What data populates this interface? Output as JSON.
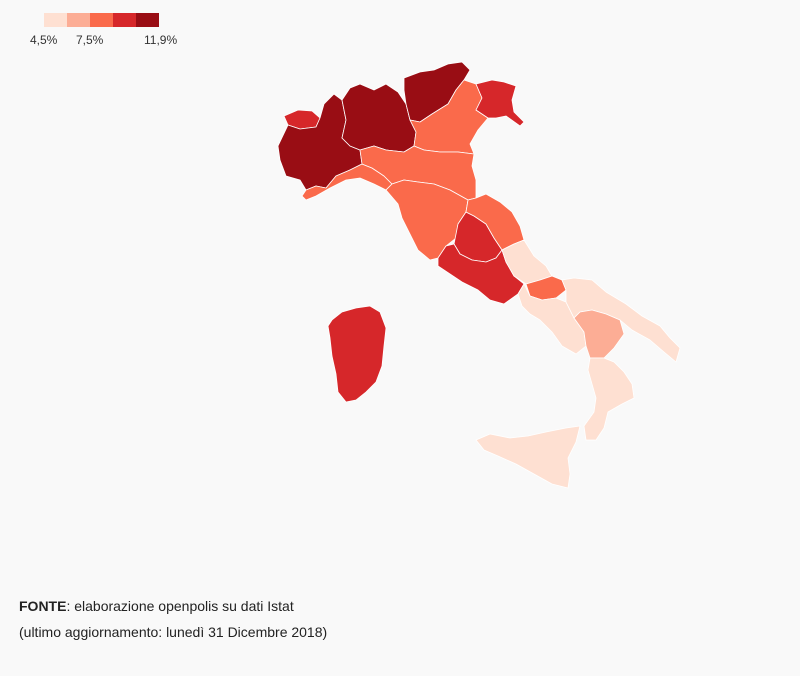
{
  "legend": {
    "labels": [
      "4,5%",
      "7,5%",
      "11,9%"
    ],
    "colors": [
      "#fee0d2",
      "#fcad95",
      "#fa6a4b",
      "#d6272a",
      "#990d14"
    ]
  },
  "source": {
    "label": "FONTE",
    "text": ": elaborazione openpolis su dati Istat",
    "update": "(ultimo aggiornamento: lunedì 31 Dicembre 2018)"
  },
  "regions": [
    {
      "name": "Valle d'Aosta",
      "class": 3
    },
    {
      "name": "Piemonte",
      "class": 4
    },
    {
      "name": "Lombardia",
      "class": 4
    },
    {
      "name": "Trentino-Alto Adige",
      "class": 4
    },
    {
      "name": "Veneto",
      "class": 2
    },
    {
      "name": "Friuli-Venezia Giulia",
      "class": 3
    },
    {
      "name": "Liguria",
      "class": 2
    },
    {
      "name": "Emilia-Romagna",
      "class": 2
    },
    {
      "name": "Toscana",
      "class": 2
    },
    {
      "name": "Umbria",
      "class": 3
    },
    {
      "name": "Marche",
      "class": 2
    },
    {
      "name": "Lazio",
      "class": 3
    },
    {
      "name": "Abruzzo",
      "class": 0
    },
    {
      "name": "Molise",
      "class": 2
    },
    {
      "name": "Campania",
      "class": 0
    },
    {
      "name": "Puglia",
      "class": 0
    },
    {
      "name": "Basilicata",
      "class": 1
    },
    {
      "name": "Calabria",
      "class": 0
    },
    {
      "name": "Sicilia",
      "class": 0
    },
    {
      "name": "Sardegna",
      "class": 3
    }
  ]
}
